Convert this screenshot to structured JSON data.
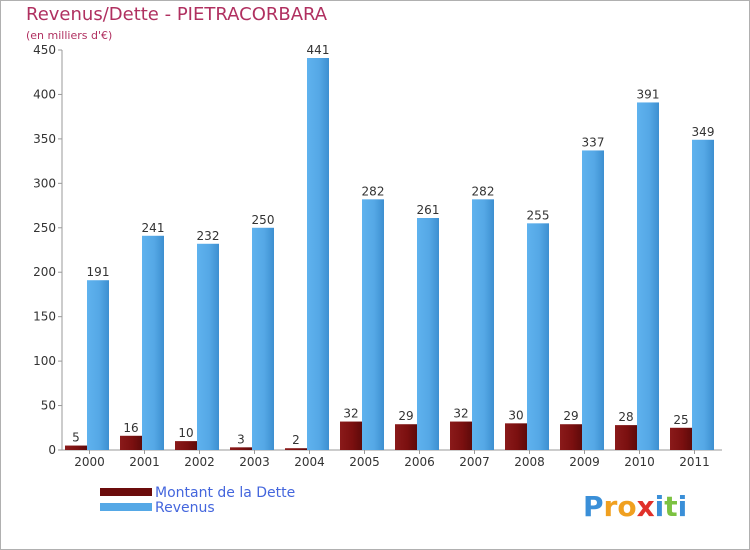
{
  "title": "Revenus/Dette - PIETRACORBARA",
  "subtitle": "(en milliers d'€)",
  "logo_text": "Proxiti",
  "colors": {
    "title": "#b03060",
    "dette": "#7b1010",
    "revenus": "#55a8e6",
    "legend_text": "#4466dd"
  },
  "chart_data": {
    "type": "bar",
    "title": "Revenus/Dette - PIETRACORBARA",
    "ylabel": "(en milliers d'€)",
    "xlabel": "",
    "categories": [
      "2000",
      "2001",
      "2002",
      "2003",
      "2004",
      "2005",
      "2006",
      "2007",
      "2008",
      "2009",
      "2010",
      "2011"
    ],
    "series": [
      {
        "name": "Montant de la Dette",
        "values": [
          5,
          16,
          10,
          3,
          2,
          32,
          29,
          32,
          30,
          29,
          28,
          25
        ]
      },
      {
        "name": "Revenus",
        "values": [
          191,
          241,
          232,
          250,
          441,
          282,
          261,
          282,
          255,
          337,
          391,
          349
        ]
      }
    ],
    "ylim": [
      0,
      450
    ],
    "yticks": [
      0,
      50,
      100,
      150,
      200,
      250,
      300,
      350,
      400,
      450
    ],
    "grid": false,
    "legend": "bottom-left"
  }
}
